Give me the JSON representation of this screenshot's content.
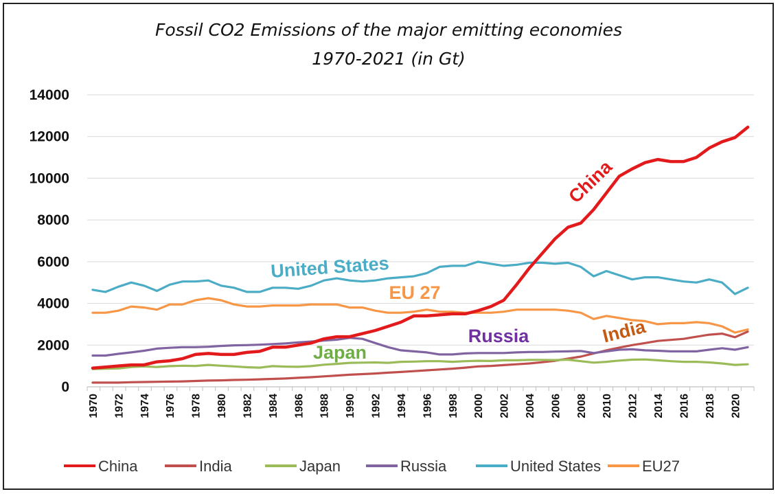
{
  "chart_data": {
    "type": "line",
    "title_line1": "Fossil CO2 Emissions of the major emitting economies",
    "title_line2": "1970-2021 (in Gt)",
    "xlabel": "",
    "ylabel": "",
    "ylim": [
      0,
      14000
    ],
    "yticks": [
      "0",
      "2000",
      "4000",
      "6000",
      "8000",
      "10000",
      "12000",
      "14000"
    ],
    "x": [
      1970,
      1971,
      1972,
      1973,
      1974,
      1975,
      1976,
      1977,
      1978,
      1979,
      1980,
      1981,
      1982,
      1983,
      1984,
      1985,
      1986,
      1987,
      1988,
      1989,
      1990,
      1991,
      1992,
      1993,
      1994,
      1995,
      1996,
      1997,
      1998,
      1999,
      2000,
      2001,
      2002,
      2003,
      2004,
      2005,
      2006,
      2007,
      2008,
      2009,
      2010,
      2011,
      2012,
      2013,
      2014,
      2015,
      2016,
      2017,
      2018,
      2019,
      2020,
      2021
    ],
    "xtick_labels": [
      "1970",
      "1972",
      "1974",
      "1976",
      "1978",
      "1980",
      "1982",
      "1984",
      "1986",
      "1988",
      "1990",
      "1992",
      "1994",
      "1996",
      "1998",
      "2000",
      "2002",
      "2004",
      "2006",
      "2008",
      "2010",
      "2012",
      "2014",
      "2016",
      "2018",
      "2020"
    ],
    "grid": "horizontal",
    "legend_position": "bottom",
    "series": [
      {
        "name": "China",
        "legend": "China",
        "color": "#e31a1c",
        "values": [
          900,
          950,
          1000,
          1050,
          1050,
          1200,
          1250,
          1350,
          1550,
          1600,
          1550,
          1550,
          1650,
          1700,
          1900,
          1900,
          2000,
          2100,
          2300,
          2400,
          2400,
          2550,
          2700,
          2900,
          3100,
          3400,
          3400,
          3450,
          3500,
          3500,
          3650,
          3850,
          4150,
          4900,
          5700,
          6400,
          7100,
          7650,
          7850,
          8500,
          9300,
          10100,
          10450,
          10750,
          10900,
          10800,
          10800,
          11000,
          11450,
          11750,
          11950,
          12450
        ]
      },
      {
        "name": "India",
        "legend": "India",
        "color": "#c0504d",
        "values": [
          200,
          200,
          200,
          220,
          230,
          240,
          250,
          260,
          280,
          300,
          310,
          330,
          340,
          360,
          380,
          400,
          430,
          460,
          500,
          540,
          580,
          610,
          640,
          680,
          710,
          750,
          790,
          830,
          870,
          920,
          980,
          1000,
          1040,
          1080,
          1120,
          1180,
          1250,
          1350,
          1450,
          1600,
          1750,
          1880,
          2000,
          2100,
          2200,
          2250,
          2300,
          2400,
          2500,
          2550,
          2380,
          2650
        ]
      },
      {
        "name": "Japan",
        "legend": "Japan",
        "color": "#9bbb59",
        "values": [
          850,
          870,
          880,
          950,
          980,
          950,
          990,
          1010,
          1000,
          1050,
          1010,
          980,
          940,
          920,
          990,
          970,
          960,
          990,
          1060,
          1100,
          1150,
          1160,
          1170,
          1150,
          1200,
          1210,
          1230,
          1230,
          1200,
          1230,
          1250,
          1240,
          1270,
          1270,
          1290,
          1290,
          1280,
          1300,
          1230,
          1160,
          1200,
          1260,
          1300,
          1310,
          1270,
          1230,
          1200,
          1200,
          1170,
          1120,
          1050,
          1080
        ]
      },
      {
        "name": "Russia",
        "legend": "Russia",
        "color": "#8064a2",
        "values": [
          1500,
          1500,
          1580,
          1650,
          1730,
          1830,
          1870,
          1900,
          1900,
          1920,
          1960,
          1990,
          2000,
          2020,
          2050,
          2080,
          2130,
          2170,
          2220,
          2260,
          2350,
          2300,
          2100,
          1900,
          1750,
          1700,
          1650,
          1550,
          1550,
          1600,
          1620,
          1620,
          1620,
          1650,
          1670,
          1670,
          1690,
          1700,
          1720,
          1620,
          1700,
          1780,
          1800,
          1750,
          1730,
          1700,
          1700,
          1700,
          1780,
          1850,
          1780,
          1900
        ]
      },
      {
        "name": "United States",
        "legend": "United States",
        "color": "#4bacc6",
        "values": [
          4650,
          4550,
          4800,
          5000,
          4850,
          4600,
          4900,
          5050,
          5050,
          5100,
          4850,
          4750,
          4550,
          4550,
          4750,
          4750,
          4700,
          4850,
          5100,
          5200,
          5100,
          5050,
          5100,
          5200,
          5250,
          5300,
          5450,
          5750,
          5800,
          5800,
          6000,
          5900,
          5800,
          5850,
          5950,
          5950,
          5900,
          5950,
          5750,
          5300,
          5550,
          5350,
          5150,
          5250,
          5250,
          5150,
          5050,
          5000,
          5150,
          5000,
          4450,
          4750
        ]
      },
      {
        "name": "EU27",
        "legend": "EU27",
        "color": "#f79646",
        "values": [
          3550,
          3550,
          3650,
          3850,
          3800,
          3700,
          3950,
          3950,
          4150,
          4250,
          4150,
          3950,
          3850,
          3850,
          3900,
          3900,
          3900,
          3950,
          3950,
          3950,
          3800,
          3800,
          3650,
          3550,
          3550,
          3600,
          3700,
          3600,
          3600,
          3550,
          3550,
          3550,
          3600,
          3700,
          3700,
          3700,
          3700,
          3650,
          3550,
          3250,
          3400,
          3300,
          3200,
          3150,
          3000,
          3050,
          3050,
          3100,
          3050,
          2900,
          2600,
          2750
        ]
      }
    ],
    "annotations": [
      {
        "text": "China",
        "color": "#e31a1c"
      },
      {
        "text": "United States",
        "color": "#4bacc6"
      },
      {
        "text": "EU 27",
        "color": "#f79646"
      },
      {
        "text": "Russia",
        "color": "#7030a0"
      },
      {
        "text": "India",
        "color": "#c55a11"
      },
      {
        "text": "Japan",
        "color": "#70ad47"
      }
    ]
  }
}
